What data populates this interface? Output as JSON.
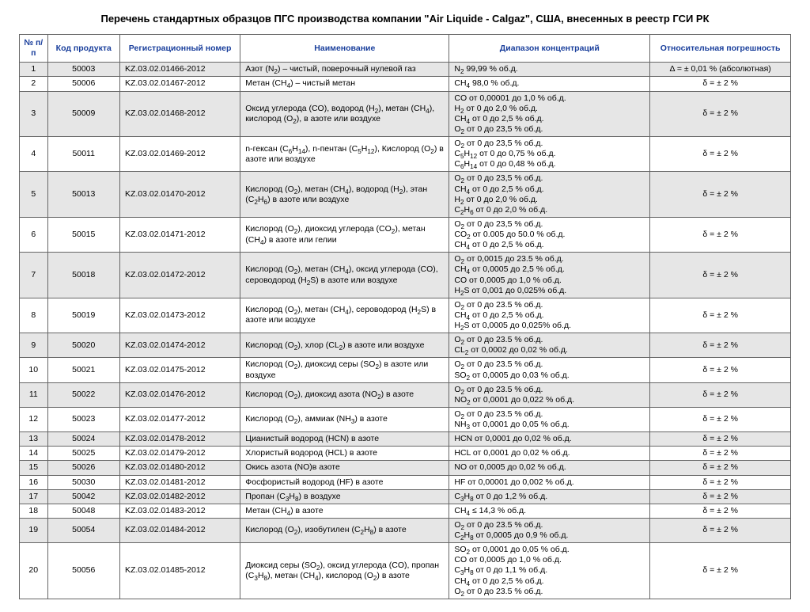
{
  "title": "Перечень стандартных образцов ПГС производства компании \"Air Liquide - Calgaz\", США, внесенных в реестр ГСИ РК",
  "columns": {
    "num": "№ п/п",
    "code": "Код продукта",
    "reg": "Регистрационный номер",
    "name": "Наименование",
    "rng": "Диапазон концентраций",
    "err": "Относительная погрешность"
  },
  "rows": [
    {
      "num": "1",
      "code": "50003",
      "reg": "KZ.03.02.01466-2012",
      "name": "Азот (N<sub>2</sub>) – чистый, поверочный нулевой газ",
      "rng": "N<sub>2</sub> 99,99 % об.д.",
      "err": "Δ = ± 0,01 % (абсолютная)",
      "shade": true
    },
    {
      "num": "2",
      "code": "50006",
      "reg": "KZ.03.02.01467-2012",
      "name": "Метан (CH<sub>4</sub>) – чистый метан",
      "rng": "CH<sub>4</sub> 98,0 % об.д.",
      "err": "δ = ± 2 %",
      "shade": false
    },
    {
      "num": "3",
      "code": "50009",
      "reg": "KZ.03.02.01468-2012",
      "name": "Оксид углерода (CO), водород (H<sub>2</sub>), метан (CH<sub>4</sub>), кислород (O<sub>2</sub>), в азоте или воздухе",
      "rng": "CO от 0,00001 до 1,0 % об.д.<br>H<sub>2</sub> от 0 до 2,0 % об.д.<br>CH<sub>4</sub> от 0 до 2,5 % об.д.<br>O<sub>2</sub> от 0 до 23,5 % об.д.",
      "err": "δ = ± 2 %",
      "shade": true
    },
    {
      "num": "4",
      "code": "50011",
      "reg": "KZ.03.02.01469-2012",
      "name": "n-гексан (C<sub>6</sub>H<sub>14</sub>), n-пентан (C<sub>5</sub>H<sub>12</sub>), Кислород (O<sub>2</sub>) в азоте или воздухе",
      "rng": "O<sub>2</sub> от 0 до 23,5 % об.д.<br>C<sub>5</sub>H<sub>12</sub> от 0 до 0,75 % об.д.<br>C<sub>6</sub>H<sub>14</sub> от 0 до 0,48 % об.д.",
      "err": "δ = ± 2 %",
      "shade": false
    },
    {
      "num": "5",
      "code": "50013",
      "reg": "KZ.03.02.01470-2012",
      "name": "Кислород (O<sub>2</sub>), метан (CH<sub>4</sub>), водород (H<sub>2</sub>), этан (C<sub>2</sub>H<sub>6</sub>) в азоте или воздухе",
      "rng": "O<sub>2</sub> от 0 до 23,5 % об.д.<br>CH<sub>4</sub> от 0 до 2,5 % об.д.<br>H<sub>2</sub> от 0 до 2,0 % об.д.<br>C<sub>2</sub>H<sub>6</sub> от 0 до 2,0 % об.д.",
      "err": "δ = ± 2 %",
      "shade": true
    },
    {
      "num": "6",
      "code": "50015",
      "reg": "KZ.03.02.01471-2012",
      "name": "Кислород (O<sub>2</sub>), диоксид углерода (CO<sub>2</sub>), метан (CH<sub>4</sub>) в азоте или гелии",
      "rng": "O<sub>2</sub> от 0 до 23,5 % об.д.<br>CO<sub>2</sub> от 0.005 до 50.0 % об.д.<br>CH<sub>4</sub> от 0 до 2,5 % об.д.",
      "err": "δ = ± 2 %",
      "shade": false
    },
    {
      "num": "7",
      "code": "50018",
      "reg": "KZ.03.02.01472-2012",
      "name": "Кислород (O<sub>2</sub>), метан (CH<sub>4</sub>), оксид углерода (CO), сероводород (H<sub>2</sub>S) в азоте или воздухе",
      "rng": "O<sub>2</sub> от 0,0015 до 23.5 % об.д.<br>CH<sub>4</sub> от 0,0005 до 2,5 % об.д.<br>CO от 0,0005 до 1,0 % об.д.<br>H<sub>2</sub>S от 0,001 до 0,025% об.д.",
      "err": "δ = ± 2 %",
      "shade": true
    },
    {
      "num": "8",
      "code": "50019",
      "reg": "KZ.03.02.01473-2012",
      "name": "Кислород (O<sub>2</sub>), метан (CH<sub>4</sub>), сероводород (H<sub>2</sub>S) в азоте или воздухе",
      "rng": "O<sub>2</sub> от 0 до 23.5 % об.д.<br>CH<sub>4</sub> от 0 до 2,5 % об.д.<br>H<sub>2</sub>S от 0,0005 до 0,025% об.д.",
      "err": "δ = ± 2 %",
      "shade": false
    },
    {
      "num": "9",
      "code": "50020",
      "reg": "KZ.03.02.01474-2012",
      "name": "Кислород (O<sub>2</sub>), хлор (CL<sub>2</sub>) в азоте или воздухе",
      "rng": "O<sub>2</sub> от 0 до 23.5 % об.д.<br>CL<sub>2</sub> от 0,0002 до 0,02 % об.д.",
      "err": "δ = ± 2 %",
      "shade": true
    },
    {
      "num": "10",
      "code": "50021",
      "reg": "KZ.03.02.01475-2012",
      "name": "Кислород (O<sub>2</sub>), диоксид серы (SO<sub>2</sub>) в азоте или воздухе",
      "rng": "O<sub>2</sub> от 0 до 23.5 % об.д.<br>SO<sub>2</sub> от 0,0005 до 0,03 % об.д.",
      "err": "δ = ± 2 %",
      "shade": false
    },
    {
      "num": "11",
      "code": "50022",
      "reg": "KZ.03.02.01476-2012",
      "name": "Кислород (O<sub>2</sub>), диоксид азота (NO<sub>2</sub>) в азоте",
      "rng": "O<sub>2</sub> от 0 до 23.5 % об.д.<br>NO<sub>2</sub> от 0,0001 до 0,022 % об.д.",
      "err": "δ = ± 2 %",
      "shade": true
    },
    {
      "num": "12",
      "code": "50023",
      "reg": "KZ.03.02.01477-2012",
      "name": "Кислород (O<sub>2</sub>), аммиак (NH<sub>3</sub>) в азоте",
      "rng": "O<sub>2</sub> от 0 до 23.5 % об.д.<br>NH<sub>3</sub> от 0,0001 до 0,05 % об.д.",
      "err": "δ = ± 2 %",
      "shade": false
    },
    {
      "num": "13",
      "code": "50024",
      "reg": "KZ.03.02.01478-2012",
      "name": "Цианистый водород (HCN) в азоте",
      "rng": "HCN от 0,0001 до 0,02 % об.д.",
      "err": "δ = ± 2 %",
      "shade": true
    },
    {
      "num": "14",
      "code": "50025",
      "reg": "KZ.03.02.01479-2012",
      "name": "Хлористый водород (HCL) в азоте",
      "rng": "HCL от 0,0001 до 0,02 % об.д.",
      "err": "δ = ± 2 %",
      "shade": false
    },
    {
      "num": "15",
      "code": "50026",
      "reg": "KZ.03.02.01480-2012",
      "name": "Окись азота (NO)в азоте",
      "rng": "NO от 0,0005 до 0,02 % об.д.",
      "err": "δ = ± 2 %",
      "shade": true
    },
    {
      "num": "16",
      "code": "50030",
      "reg": "KZ.03.02.01481-2012",
      "name": "Фосфористый водород (HF) в азоте",
      "rng": "HF от 0,00001 до 0,002 % об.д.",
      "err": "δ = ± 2 %",
      "shade": false
    },
    {
      "num": "17",
      "code": "50042",
      "reg": "KZ.03.02.01482-2012",
      "name": "Пропан (C<sub>3</sub>H<sub>8</sub>) в воздухе",
      "rng": "C<sub>3</sub>H<sub>8</sub> от 0 до 1,2 % об.д.",
      "err": "δ = ± 2 %",
      "shade": true
    },
    {
      "num": "18",
      "code": "50048",
      "reg": "KZ.03.02.01483-2012",
      "name": "Метан (CH<sub>4</sub>) в азоте",
      "rng": "CH<sub>4</sub> ≤ 14,3 % об.д.",
      "err": "δ = ± 2 %",
      "shade": false
    },
    {
      "num": "19",
      "code": "50054",
      "reg": "KZ.03.02.01484-2012",
      "name": "Кислород (O<sub>2</sub>), изобутилен (C<sub>2</sub>H<sub>8</sub>) в азоте",
      "rng": "O<sub>2</sub> от 0 до 23.5 % об.д.<br>C<sub>2</sub>H<sub>8</sub> от 0,0005 до 0,9 % об.д.",
      "err": "δ = ± 2 %",
      "shade": true
    },
    {
      "num": "20",
      "code": "50056",
      "reg": "KZ.03.02.01485-2012",
      "name": "Диоксид серы (SO<sub>2</sub>), оксид углерода (CO), пропан (C<sub>3</sub>H<sub>8</sub>), метан (CH<sub>4</sub>), кислород (O<sub>2</sub>) в азоте",
      "rng": "SO<sub>2</sub> от 0,0001 до 0,05 % об.д.<br>CO от 0,0005 до 1,0 % об.д.<br>C<sub>3</sub>H<sub>8</sub> от 0 до 1,1 % об.д.<br>CH<sub>4</sub> от 0 до 2,5 % об.д.<br>O<sub>2</sub> от 0 до 23.5 % об.д.",
      "err": "δ = ± 2 %",
      "shade": false
    }
  ]
}
